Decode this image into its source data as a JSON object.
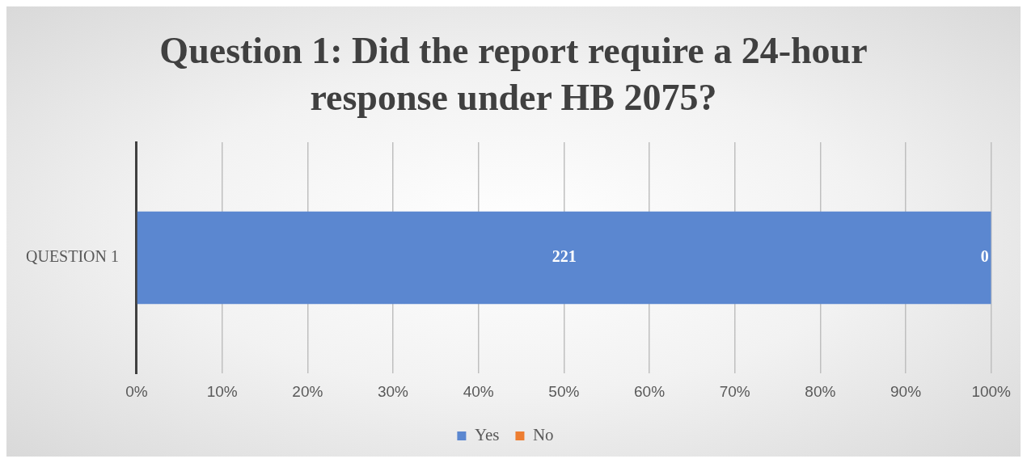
{
  "chart_data": {
    "type": "bar",
    "title": "Question 1: Did the report require a 24-hour response under HB 2075?",
    "orientation": "horizontal",
    "stacked": true,
    "categories": [
      "QUESTION 1"
    ],
    "series": [
      {
        "name": "Yes",
        "color": "#5b87d0",
        "values": [
          100
        ]
      },
      {
        "name": "No",
        "color": "#ed7d31",
        "values": [
          0
        ]
      }
    ],
    "annotations": [
      "221",
      "0"
    ],
    "xlim": [
      0,
      100
    ],
    "xticks": [
      {
        "value": 0,
        "label": "0%"
      },
      {
        "value": 10,
        "label": "10%"
      },
      {
        "value": 20,
        "label": "20%"
      },
      {
        "value": 30,
        "label": "30%"
      },
      {
        "value": 40,
        "label": "40%"
      },
      {
        "value": 50,
        "label": "50%"
      },
      {
        "value": 60,
        "label": "60%"
      },
      {
        "value": 70,
        "label": "70%"
      },
      {
        "value": 80,
        "label": "80%"
      },
      {
        "value": 90,
        "label": "90%"
      },
      {
        "value": 100,
        "label": "100%"
      }
    ],
    "grid": "x",
    "legend": "bottom"
  }
}
